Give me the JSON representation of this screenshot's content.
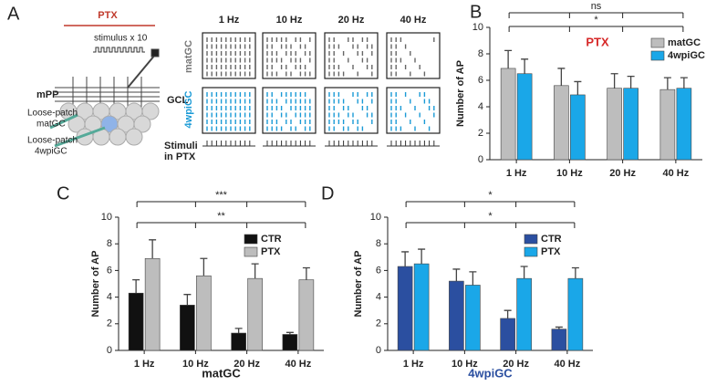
{
  "panel_a": {
    "label": "A",
    "treatment": "PTX",
    "stimulus": "stimulus x 10",
    "pathway": "mPP",
    "layer": "GCL",
    "patch_mat": [
      "Loose-patch",
      "matGC"
    ],
    "patch_4wpi": [
      "Loose-patch",
      "4wpiGC"
    ],
    "frequencies": [
      "1 Hz",
      "10 Hz",
      "20 Hz",
      "40 Hz"
    ],
    "rows": [
      "matGC",
      "4wpiGC"
    ],
    "stimuli": [
      "Stimuli",
      "in PTX"
    ]
  },
  "chart_data": [
    {
      "panel": "B",
      "type": "bar",
      "ylabel": "Number of AP",
      "inset": "PTX",
      "categories": [
        "1 Hz",
        "10 Hz",
        "20 Hz",
        "40 Hz"
      ],
      "ylim": [
        0,
        10
      ],
      "yticks": [
        0,
        2,
        4,
        6,
        8,
        10
      ],
      "series": [
        {
          "name": "matGC",
          "color": "#bdbdbd",
          "values": [
            6.9,
            5.6,
            5.4,
            5.3
          ],
          "errors": [
            1.35,
            1.3,
            1.1,
            0.9
          ]
        },
        {
          "name": "4wpiGC",
          "color": "#1aa7e8",
          "values": [
            6.5,
            4.9,
            5.4,
            5.4
          ],
          "errors": [
            1.1,
            1.0,
            0.9,
            0.8
          ]
        }
      ],
      "annotations": [
        "ns",
        "*"
      ]
    },
    {
      "panel": "C",
      "type": "bar",
      "ylabel": "Number of AP",
      "xlabel": "matGC",
      "categories": [
        "1 Hz",
        "10 Hz",
        "20 Hz",
        "40 Hz"
      ],
      "ylim": [
        0,
        10
      ],
      "yticks": [
        0,
        2,
        4,
        6,
        8,
        10
      ],
      "series": [
        {
          "name": "CTR",
          "color": "#111111",
          "values": [
            4.3,
            3.4,
            1.3,
            1.2
          ],
          "errors": [
            1.0,
            0.8,
            0.35,
            0.15
          ]
        },
        {
          "name": "PTX",
          "color": "#bdbdbd",
          "values": [
            6.9,
            5.6,
            5.4,
            5.3
          ],
          "errors": [
            1.4,
            1.3,
            1.1,
            0.9
          ]
        }
      ],
      "annotations": [
        "***",
        "**"
      ]
    },
    {
      "panel": "D",
      "type": "bar",
      "ylabel": "Number of AP",
      "xlabel": "4wpiGC",
      "categories": [
        "1 Hz",
        "10 Hz",
        "20 Hz",
        "40 Hz"
      ],
      "ylim": [
        0,
        10
      ],
      "yticks": [
        0,
        2,
        4,
        6,
        8,
        10
      ],
      "series": [
        {
          "name": "CTR",
          "color": "#2b4fa0",
          "values": [
            6.3,
            5.2,
            2.4,
            1.6
          ],
          "errors": [
            1.1,
            0.9,
            0.6,
            0.15
          ]
        },
        {
          "name": "PTX",
          "color": "#1aa7e8",
          "values": [
            6.5,
            4.9,
            5.4,
            5.4
          ],
          "errors": [
            1.1,
            1.0,
            0.9,
            0.8
          ]
        }
      ],
      "annotations": [
        "*",
        "*"
      ]
    }
  ]
}
